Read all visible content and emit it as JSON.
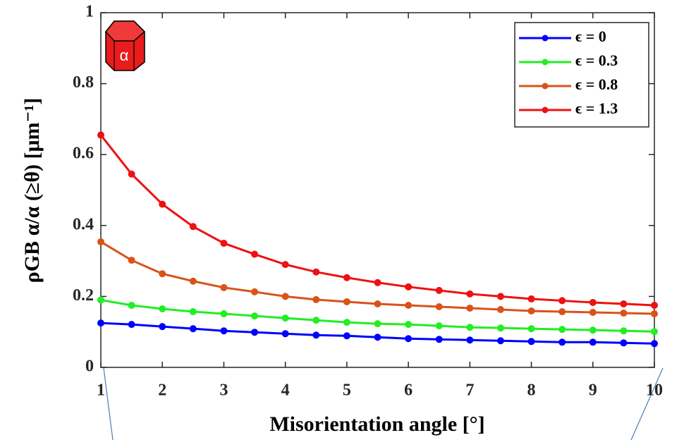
{
  "chart_data": {
    "type": "line",
    "x_label": "Misorientation angle [°]",
    "y_label": "ρGB α/α (≥θ) [μm⁻¹]",
    "icon_label": "α",
    "x": [
      1,
      1.5,
      2,
      2.5,
      3,
      3.5,
      4,
      4.5,
      5,
      5.5,
      6,
      6.5,
      7,
      7.5,
      8,
      8.5,
      9,
      9.5,
      10
    ],
    "series": [
      {
        "name": "ϵ = 0",
        "color": "#0000ff",
        "values": [
          0.125,
          0.121,
          0.115,
          0.109,
          0.103,
          0.099,
          0.095,
          0.091,
          0.089,
          0.085,
          0.081,
          0.079,
          0.077,
          0.075,
          0.073,
          0.071,
          0.071,
          0.069,
          0.067
        ]
      },
      {
        "name": "ϵ = 0.3",
        "color": "#22ee22",
        "values": [
          0.19,
          0.175,
          0.165,
          0.157,
          0.151,
          0.145,
          0.139,
          0.133,
          0.127,
          0.123,
          0.121,
          0.117,
          0.113,
          0.111,
          0.109,
          0.107,
          0.105,
          0.103,
          0.101
        ]
      },
      {
        "name": "ϵ = 0.8",
        "color": "#d95319",
        "values": [
          0.354,
          0.302,
          0.264,
          0.243,
          0.225,
          0.213,
          0.2,
          0.191,
          0.185,
          0.179,
          0.175,
          0.171,
          0.167,
          0.163,
          0.159,
          0.157,
          0.155,
          0.153,
          0.151
        ]
      },
      {
        "name": "ϵ = 1.3",
        "color": "#ee1111",
        "values": [
          0.655,
          0.545,
          0.46,
          0.397,
          0.35,
          0.319,
          0.29,
          0.269,
          0.253,
          0.239,
          0.227,
          0.217,
          0.207,
          0.2,
          0.193,
          0.188,
          0.183,
          0.179,
          0.175
        ]
      }
    ],
    "xlim": [
      1,
      10
    ],
    "ylim": [
      0,
      1
    ],
    "xticks": [
      1,
      2,
      3,
      4,
      5,
      6,
      7,
      8,
      9,
      10
    ],
    "yticks": [
      0,
      0.2,
      0.4,
      0.6,
      0.8,
      1
    ],
    "grid": false,
    "legend": "upper right"
  }
}
